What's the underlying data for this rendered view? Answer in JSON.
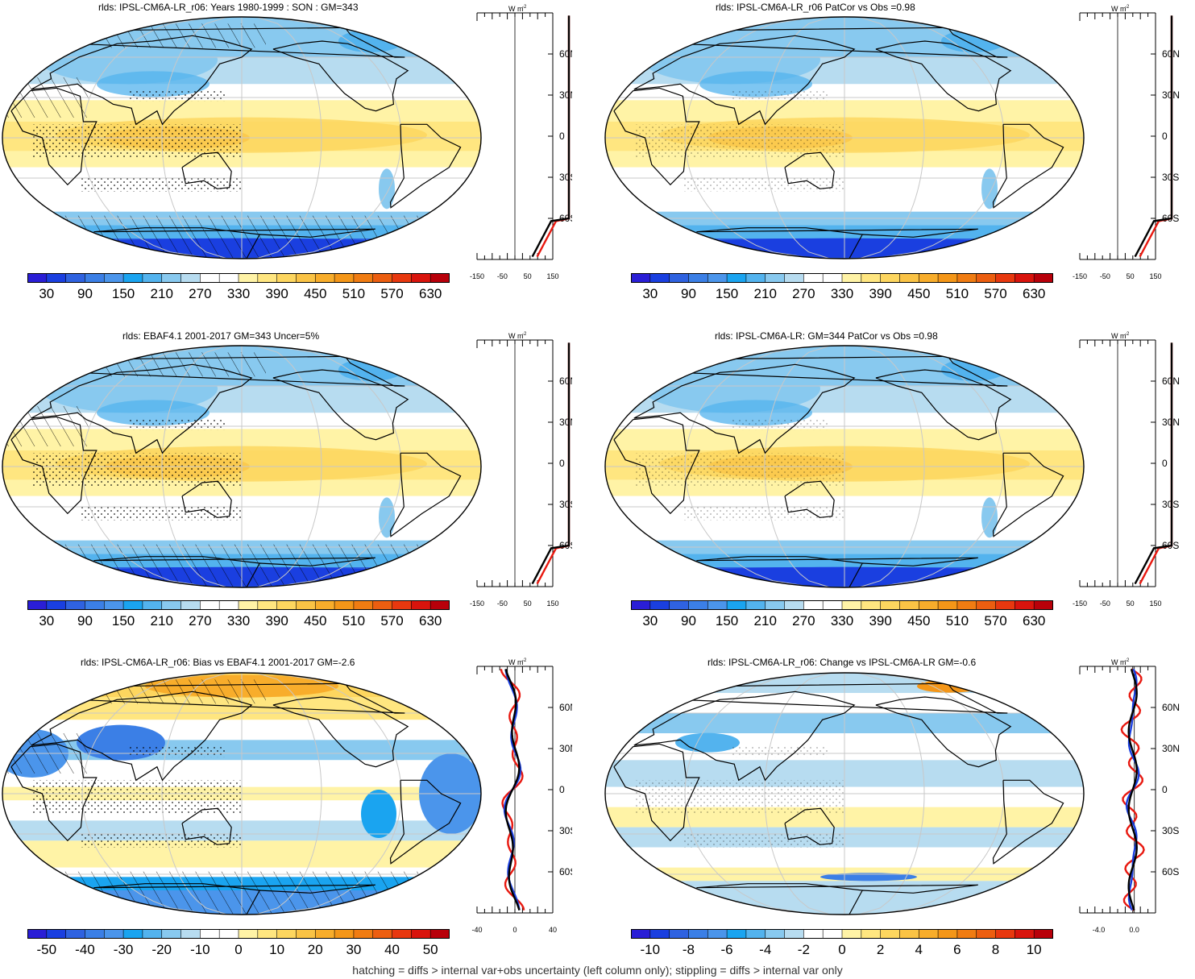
{
  "caption": "hatching = diffs > internal var+obs uncertainty (left column only); stippling = diffs > internal var only",
  "colorbars": {
    "absolute": {
      "labels": [
        "30",
        "90",
        "150",
        "210",
        "270",
        "330",
        "390",
        "450",
        "510",
        "570",
        "630"
      ],
      "colors": [
        "#2a1ed6",
        "#1a3fe0",
        "#2f62e0",
        "#3b7fe6",
        "#4b95eb",
        "#1aa4f0",
        "#53b3ee",
        "#88c9ef",
        "#b7dcf0",
        "#ffffff",
        "#ffffff",
        "#fff3a6",
        "#ffe680",
        "#fdd65f",
        "#fac345",
        "#f8ad2b",
        "#f49618",
        "#f07c12",
        "#ec5e10",
        "#e8380f",
        "#d9140d",
        "#b8000a"
      ]
    },
    "bias": {
      "labels": [
        "-50",
        "-40",
        "-30",
        "-20",
        "-10",
        "0",
        "10",
        "20",
        "30",
        "40",
        "50"
      ],
      "colors": [
        "#2a1ed6",
        "#1a3fe0",
        "#2f62e0",
        "#3b7fe6",
        "#4b95eb",
        "#1aa4f0",
        "#53b3ee",
        "#88c9ef",
        "#b7dcf0",
        "#ffffff",
        "#ffffff",
        "#fff3a6",
        "#ffe680",
        "#fdd65f",
        "#fac345",
        "#f8ad2b",
        "#f49618",
        "#f07c12",
        "#ec5e10",
        "#e8380f",
        "#d9140d",
        "#b8000a"
      ]
    },
    "change": {
      "labels": [
        "-10",
        "-8",
        "-6",
        "-4",
        "-2",
        "0",
        "2",
        "4",
        "6",
        "8",
        "10"
      ],
      "colors": [
        "#2a1ed6",
        "#1a3fe0",
        "#2f62e0",
        "#3b7fe6",
        "#4b95eb",
        "#1aa4f0",
        "#53b3ee",
        "#88c9ef",
        "#b7dcf0",
        "#ffffff",
        "#ffffff",
        "#fff3a6",
        "#ffe680",
        "#fdd65f",
        "#fac345",
        "#f8ad2b",
        "#f49618",
        "#f07c12",
        "#ec5e10",
        "#e8380f",
        "#d9140d",
        "#b8000a"
      ]
    }
  },
  "lat_labels": [
    "60N",
    "30N",
    "0",
    "30S",
    "60S"
  ],
  "profile_units": "W m",
  "profile_units_sup": "-2",
  "panels": [
    {
      "title": "rlds: IPSL-CM6A-LR_r06: Years 1980-1999 : SON : GM=343",
      "kind": "absolute",
      "xticks": [
        "-150",
        "-50",
        "50",
        "150"
      ],
      "hatched": true
    },
    {
      "title": "rlds: IPSL-CM6A-LR_r06 PatCor vs Obs =0.98",
      "kind": "absolute",
      "xticks": [
        "-150",
        "-50",
        "50",
        "150"
      ],
      "hatched": false
    },
    {
      "title": "rlds: EBAF4.1 2001-2017 GM=343 Uncer=5%",
      "kind": "absolute",
      "xticks": [
        "-150",
        "-50",
        "50",
        "150"
      ],
      "hatched": true
    },
    {
      "title": "rlds: IPSL-CM6A-LR: GM=344 PatCor vs Obs =0.98",
      "kind": "absolute",
      "xticks": [
        "-150",
        "-50",
        "50",
        "150"
      ],
      "hatched": false
    },
    {
      "title": "rlds: IPSL-CM6A-LR_r06: Bias vs EBAF4.1 2001-2017  GM=-2.6",
      "kind": "bias",
      "xticks": [
        "-40",
        "0",
        "40"
      ],
      "hatched": true
    },
    {
      "title": "rlds: IPSL-CM6A-LR_r06: Change vs IPSL-CM6A-LR GM=-0.6",
      "kind": "change",
      "xticks": [
        "-4.0",
        "0.0"
      ],
      "hatched": false
    }
  ]
}
